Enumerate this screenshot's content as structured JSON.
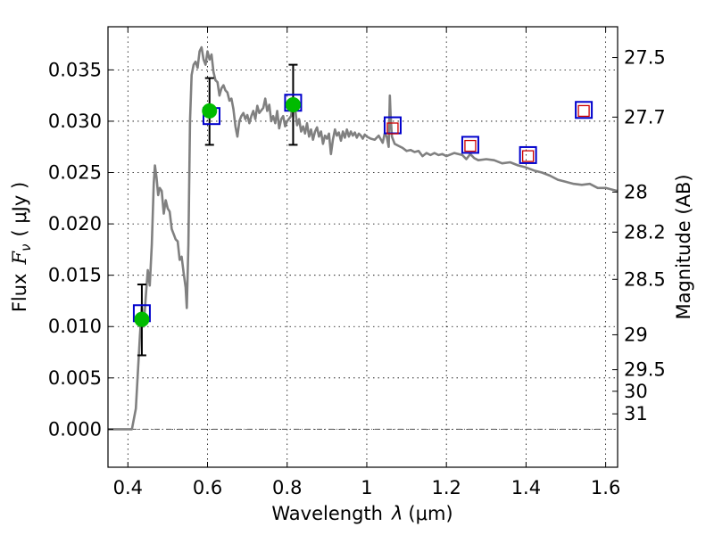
{
  "chart_data": {
    "type": "scatter",
    "xlabel_text": "Wavelength",
    "xlabel_symbol": "λ",
    "xlabel_unit": "(μm)",
    "ylabel_text": "Flux",
    "ylabel_symbol": "F",
    "ylabel_subscript": "ν",
    "ylabel_unit": "( μJy )",
    "y2label": "Magnitude (AB)",
    "xlim": [
      0.35,
      1.63
    ],
    "ylim": [
      -0.0037,
      0.0392
    ],
    "grid": true,
    "x_ticks": [
      {
        "value": 0.4,
        "label": "0.4"
      },
      {
        "value": 0.6,
        "label": "0.6"
      },
      {
        "value": 0.8,
        "label": "0.8"
      },
      {
        "value": 1.0,
        "label": "1"
      },
      {
        "value": 1.2,
        "label": "1.2"
      },
      {
        "value": 1.4,
        "label": "1.4"
      },
      {
        "value": 1.6,
        "label": "1.6"
      }
    ],
    "y_ticks": [
      {
        "value": 0.0,
        "label": "0.000"
      },
      {
        "value": 0.005,
        "label": "0.005"
      },
      {
        "value": 0.01,
        "label": "0.010"
      },
      {
        "value": 0.015,
        "label": "0.015"
      },
      {
        "value": 0.02,
        "label": "0.020"
      },
      {
        "value": 0.025,
        "label": "0.025"
      },
      {
        "value": 0.03,
        "label": "0.030"
      },
      {
        "value": 0.035,
        "label": "0.035"
      }
    ],
    "y2_ticks": [
      {
        "flux": 0.0362,
        "label": "27.5"
      },
      {
        "flux": 0.0304,
        "label": "27.7"
      },
      {
        "flux": 0.0231,
        "label": "28"
      },
      {
        "flux": 0.0192,
        "label": "28.2"
      },
      {
        "flux": 0.0146,
        "label": "28.5"
      },
      {
        "flux": 0.0092,
        "label": "29"
      },
      {
        "flux": 0.0058,
        "label": "29.5"
      },
      {
        "flux": 0.0037,
        "label": "30"
      },
      {
        "flux": 0.0015,
        "label": "31"
      }
    ],
    "sed_curve": {
      "color": "#808080",
      "points": [
        [
          0.35,
          0.0
        ],
        [
          0.4,
          0.0
        ],
        [
          0.41,
          0.0
        ],
        [
          0.42,
          0.002
        ],
        [
          0.43,
          0.009
        ],
        [
          0.435,
          0.012
        ],
        [
          0.44,
          0.01
        ],
        [
          0.445,
          0.013
        ],
        [
          0.45,
          0.0155
        ],
        [
          0.455,
          0.014
        ],
        [
          0.46,
          0.018
        ],
        [
          0.465,
          0.024
        ],
        [
          0.468,
          0.0257
        ],
        [
          0.472,
          0.0245
        ],
        [
          0.476,
          0.0228
        ],
        [
          0.48,
          0.0235
        ],
        [
          0.485,
          0.0232
        ],
        [
          0.49,
          0.021
        ],
        [
          0.495,
          0.0223
        ],
        [
          0.5,
          0.0215
        ],
        [
          0.505,
          0.0212
        ],
        [
          0.51,
          0.0195
        ],
        [
          0.515,
          0.019
        ],
        [
          0.52,
          0.0185
        ],
        [
          0.525,
          0.0183
        ],
        [
          0.53,
          0.0165
        ],
        [
          0.535,
          0.0168
        ],
        [
          0.54,
          0.0152
        ],
        [
          0.545,
          0.0138
        ],
        [
          0.548,
          0.0118
        ],
        [
          0.552,
          0.018
        ],
        [
          0.556,
          0.03
        ],
        [
          0.56,
          0.0345
        ],
        [
          0.565,
          0.0355
        ],
        [
          0.57,
          0.0358
        ],
        [
          0.575,
          0.0352
        ],
        [
          0.58,
          0.0368
        ],
        [
          0.585,
          0.0372
        ],
        [
          0.59,
          0.036
        ],
        [
          0.595,
          0.0355
        ],
        [
          0.6,
          0.0368
        ],
        [
          0.605,
          0.036
        ],
        [
          0.61,
          0.0365
        ],
        [
          0.615,
          0.0348
        ],
        [
          0.62,
          0.034
        ],
        [
          0.625,
          0.0338
        ],
        [
          0.63,
          0.0325
        ],
        [
          0.635,
          0.0332
        ],
        [
          0.64,
          0.0335
        ],
        [
          0.645,
          0.033
        ],
        [
          0.65,
          0.0328
        ],
        [
          0.655,
          0.032
        ],
        [
          0.66,
          0.0322
        ],
        [
          0.665,
          0.0312
        ],
        [
          0.67,
          0.0295
        ],
        [
          0.675,
          0.0285
        ],
        [
          0.68,
          0.03
        ],
        [
          0.685,
          0.0305
        ],
        [
          0.69,
          0.0308
        ],
        [
          0.695,
          0.0302
        ],
        [
          0.7,
          0.0306
        ],
        [
          0.705,
          0.0298
        ],
        [
          0.71,
          0.0305
        ],
        [
          0.715,
          0.031
        ],
        [
          0.72,
          0.0302
        ],
        [
          0.725,
          0.0315
        ],
        [
          0.73,
          0.0308
        ],
        [
          0.74,
          0.0313
        ],
        [
          0.745,
          0.0322
        ],
        [
          0.75,
          0.031
        ],
        [
          0.755,
          0.0316
        ],
        [
          0.76,
          0.03
        ],
        [
          0.765,
          0.0305
        ],
        [
          0.77,
          0.0298
        ],
        [
          0.775,
          0.031
        ],
        [
          0.78,
          0.0293
        ],
        [
          0.785,
          0.0302
        ],
        [
          0.79,
          0.0305
        ],
        [
          0.795,
          0.0295
        ],
        [
          0.8,
          0.03
        ],
        [
          0.81,
          0.0305
        ],
        [
          0.815,
          0.032
        ],
        [
          0.82,
          0.0312
        ],
        [
          0.825,
          0.0296
        ],
        [
          0.83,
          0.0302
        ],
        [
          0.835,
          0.029
        ],
        [
          0.84,
          0.0295
        ],
        [
          0.845,
          0.0288
        ],
        [
          0.85,
          0.0298
        ],
        [
          0.855,
          0.0285
        ],
        [
          0.86,
          0.0292
        ],
        [
          0.865,
          0.0282
        ],
        [
          0.87,
          0.029
        ],
        [
          0.875,
          0.0294
        ],
        [
          0.88,
          0.0285
        ],
        [
          0.885,
          0.029
        ],
        [
          0.89,
          0.0278
        ],
        [
          0.895,
          0.0286
        ],
        [
          0.9,
          0.0283
        ],
        [
          0.905,
          0.0288
        ],
        [
          0.91,
          0.0268
        ],
        [
          0.915,
          0.0282
        ],
        [
          0.92,
          0.0292
        ],
        [
          0.925,
          0.0286
        ],
        [
          0.93,
          0.0289
        ],
        [
          0.935,
          0.0281
        ],
        [
          0.94,
          0.029
        ],
        [
          0.945,
          0.0284
        ],
        [
          0.95,
          0.0292
        ],
        [
          0.955,
          0.0285
        ],
        [
          0.96,
          0.029
        ],
        [
          0.965,
          0.0286
        ],
        [
          0.97,
          0.0289
        ],
        [
          0.975,
          0.0284
        ],
        [
          0.98,
          0.0288
        ],
        [
          0.985,
          0.0286
        ],
        [
          0.99,
          0.0283
        ],
        [
          0.995,
          0.0287
        ],
        [
          1.0,
          0.0285
        ],
        [
          1.01,
          0.0283
        ],
        [
          1.02,
          0.0282
        ],
        [
          1.03,
          0.0286
        ],
        [
          1.04,
          0.0279
        ],
        [
          1.045,
          0.0288
        ],
        [
          1.05,
          0.0285
        ],
        [
          1.055,
          0.0275
        ],
        [
          1.058,
          0.0325
        ],
        [
          1.06,
          0.0305
        ],
        [
          1.063,
          0.0285
        ],
        [
          1.07,
          0.0278
        ],
        [
          1.08,
          0.0276
        ],
        [
          1.09,
          0.0274
        ],
        [
          1.1,
          0.0271
        ],
        [
          1.11,
          0.0272
        ],
        [
          1.12,
          0.027
        ],
        [
          1.13,
          0.0271
        ],
        [
          1.14,
          0.0266
        ],
        [
          1.15,
          0.0269
        ],
        [
          1.16,
          0.0267
        ],
        [
          1.17,
          0.0269
        ],
        [
          1.18,
          0.0267
        ],
        [
          1.19,
          0.0268
        ],
        [
          1.2,
          0.0266
        ],
        [
          1.22,
          0.0269
        ],
        [
          1.24,
          0.0267
        ],
        [
          1.25,
          0.0263
        ],
        [
          1.26,
          0.0268
        ],
        [
          1.27,
          0.0264
        ],
        [
          1.28,
          0.0262
        ],
        [
          1.3,
          0.0263
        ],
        [
          1.32,
          0.0262
        ],
        [
          1.34,
          0.0259
        ],
        [
          1.36,
          0.026
        ],
        [
          1.38,
          0.0257
        ],
        [
          1.4,
          0.0255
        ],
        [
          1.42,
          0.0252
        ],
        [
          1.44,
          0.025
        ],
        [
          1.46,
          0.0247
        ],
        [
          1.48,
          0.0243
        ],
        [
          1.5,
          0.0241
        ],
        [
          1.52,
          0.0239
        ],
        [
          1.54,
          0.0238
        ],
        [
          1.56,
          0.0239
        ],
        [
          1.58,
          0.0235
        ],
        [
          1.6,
          0.0235
        ],
        [
          1.63,
          0.0232
        ]
      ]
    },
    "model_squares": {
      "color": "#0000cc",
      "points": [
        [
          0.435,
          0.0113
        ],
        [
          0.61,
          0.0305
        ],
        [
          0.815,
          0.0318
        ],
        [
          1.065,
          0.0296
        ],
        [
          1.26,
          0.0277
        ],
        [
          1.405,
          0.0267
        ],
        [
          1.545,
          0.0311
        ]
      ]
    },
    "upper_limit_squares": {
      "color": "#cc0000",
      "points": [
        [
          1.065,
          0.0293
        ],
        [
          1.26,
          0.0276
        ],
        [
          1.405,
          0.0266
        ],
        [
          1.545,
          0.031
        ]
      ]
    },
    "detections": {
      "color": "#00bb00",
      "points": [
        {
          "x": 0.435,
          "y": 0.0107,
          "yerr_low": 0.0072,
          "yerr_high": 0.0141
        },
        {
          "x": 0.605,
          "y": 0.031,
          "yerr_low": 0.0277,
          "yerr_high": 0.0342
        },
        {
          "x": 0.815,
          "y": 0.0316,
          "yerr_low": 0.0277,
          "yerr_high": 0.0355
        }
      ]
    }
  }
}
